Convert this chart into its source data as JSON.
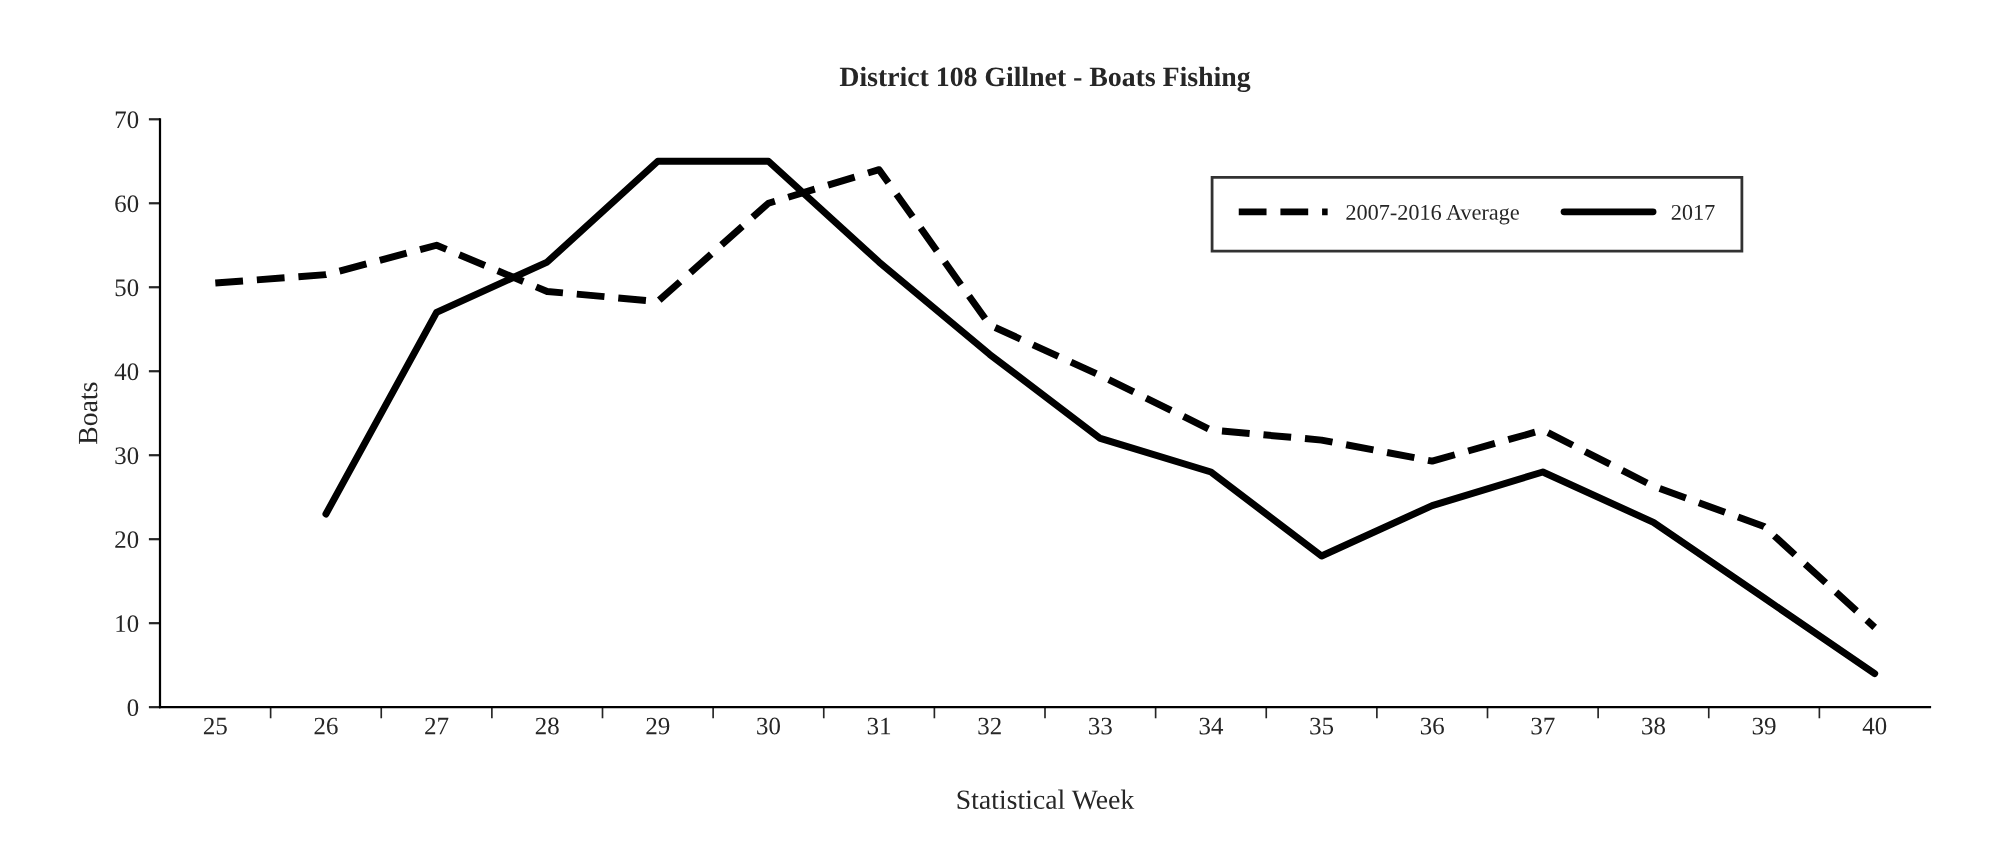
{
  "chart_data": {
    "type": "line",
    "title": "District 108 Gillnet - Boats Fishing",
    "xlabel": "Statistical Week",
    "ylabel": "Boats",
    "categories": [
      "25",
      "26",
      "27",
      "28",
      "29",
      "30",
      "31",
      "32",
      "33",
      "34",
      "35",
      "36",
      "37",
      "38",
      "39",
      "40"
    ],
    "series": [
      {
        "name": "2007-2016 Average",
        "color": "#000000",
        "line_style": "dashed",
        "values": [
          50.5,
          51.5,
          55,
          49.5,
          48.3,
          60,
          64,
          45.5,
          39.5,
          33,
          31.8,
          29.3,
          33,
          26.3,
          21.5,
          9.5
        ]
      },
      {
        "name": "2017",
        "color": "#000000",
        "line_style": "solid",
        "values": [
          null,
          23,
          47,
          53,
          65,
          65,
          53,
          42,
          32,
          28,
          18,
          24,
          28,
          22,
          13,
          4
        ]
      }
    ],
    "ylim": [
      0,
      70
    ],
    "yticks": [
      0,
      10,
      20,
      30,
      40,
      50,
      60,
      70
    ],
    "grid": false,
    "legend": "top right",
    "marker": "none"
  }
}
